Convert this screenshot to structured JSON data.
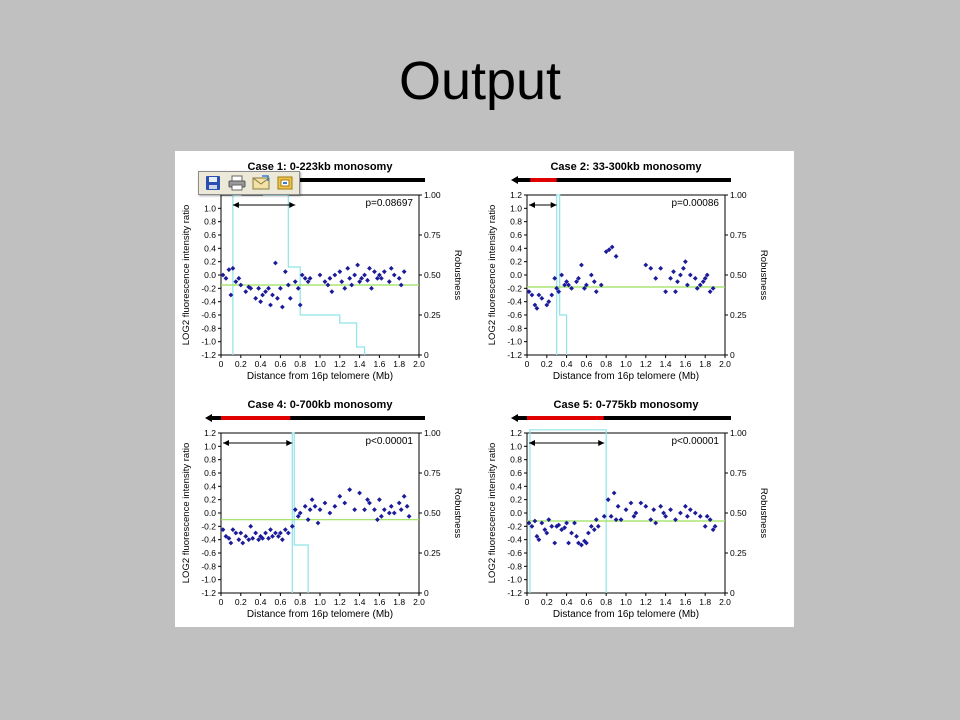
{
  "slide": {
    "title": "Output"
  },
  "toolbar": {
    "buttons": [
      {
        "icon": "save-icon"
      },
      {
        "icon": "print-icon"
      },
      {
        "icon": "email-icon"
      },
      {
        "icon": "export-icon"
      }
    ]
  },
  "chart_data": [
    {
      "type": "scatter",
      "title": "Case 1: 0-223kb monosomy",
      "pvalue": "p=0.08697",
      "xlabel": "Distance from 16p telomere (Mb)",
      "ylabel": "LOG2 fluorescence intensity ratio",
      "y2label": "Robustness",
      "xlim": [
        0,
        2.0
      ],
      "ylim": [
        -1.2,
        1.2
      ],
      "y2lim": [
        0,
        1.0
      ],
      "x_ticks": [
        "0",
        "0.2",
        "0.4",
        "0.6",
        "0.8",
        "1.0",
        "1.2",
        "1.4",
        "1.6",
        "1.8",
        "2.0"
      ],
      "y_ticks": [
        "1.0",
        "0.8",
        "0.6",
        "0.4",
        "0.2",
        "0.0",
        "-0.2",
        "-0.4",
        "-0.6",
        "-0.8",
        "-1.0",
        "-1.2"
      ],
      "y2_ticks": [
        "1.00",
        "0.75",
        "0.50",
        "0.25",
        "0"
      ],
      "monosomy_bar": [
        0,
        0.223
      ],
      "arrow_range": [
        0.1,
        0.75
      ],
      "baseline": -0.15,
      "robustness_step": [
        [
          0.12,
          0
        ],
        [
          0.12,
          1.0
        ],
        [
          0.2,
          1.0
        ],
        [
          0.2,
          1.05
        ],
        [
          0.43,
          1.05
        ],
        [
          0.43,
          1.0
        ],
        [
          0.68,
          1.0
        ],
        [
          0.68,
          0.55
        ],
        [
          0.8,
          0.55
        ],
        [
          0.8,
          0.25
        ],
        [
          1.2,
          0.25
        ],
        [
          1.2,
          0.2
        ],
        [
          1.37,
          0.2
        ],
        [
          1.37,
          0.05
        ],
        [
          1.45,
          0.05
        ],
        [
          1.45,
          0
        ]
      ],
      "points": [
        [
          0.02,
          0.0
        ],
        [
          0.05,
          -0.05
        ],
        [
          0.08,
          0.08
        ],
        [
          0.1,
          -0.3
        ],
        [
          0.12,
          0.1
        ],
        [
          0.15,
          -0.1
        ],
        [
          0.18,
          -0.05
        ],
        [
          0.2,
          -0.15
        ],
        [
          0.25,
          -0.25
        ],
        [
          0.28,
          -0.18
        ],
        [
          0.3,
          -0.2
        ],
        [
          0.35,
          -0.35
        ],
        [
          0.38,
          -0.2
        ],
        [
          0.4,
          -0.4
        ],
        [
          0.42,
          -0.3
        ],
        [
          0.45,
          -0.25
        ],
        [
          0.48,
          -0.2
        ],
        [
          0.5,
          -0.45
        ],
        [
          0.52,
          -0.3
        ],
        [
          0.55,
          0.18
        ],
        [
          0.57,
          -0.35
        ],
        [
          0.6,
          -0.2
        ],
        [
          0.62,
          -0.48
        ],
        [
          0.65,
          0.05
        ],
        [
          0.68,
          -0.15
        ],
        [
          0.7,
          -0.35
        ],
        [
          0.75,
          -0.1
        ],
        [
          0.78,
          -0.2
        ],
        [
          0.8,
          -0.45
        ],
        [
          0.82,
          0.0
        ],
        [
          0.85,
          -0.05
        ],
        [
          0.88,
          -0.1
        ],
        [
          0.9,
          -0.05
        ],
        [
          1.0,
          0.0
        ],
        [
          1.05,
          -0.1
        ],
        [
          1.08,
          -0.15
        ],
        [
          1.1,
          -0.05
        ],
        [
          1.12,
          -0.25
        ],
        [
          1.15,
          0.0
        ],
        [
          1.2,
          0.05
        ],
        [
          1.22,
          -0.1
        ],
        [
          1.25,
          -0.2
        ],
        [
          1.28,
          0.1
        ],
        [
          1.3,
          -0.05
        ],
        [
          1.32,
          -0.15
        ],
        [
          1.35,
          0.0
        ],
        [
          1.38,
          0.15
        ],
        [
          1.4,
          -0.1
        ],
        [
          1.42,
          -0.05
        ],
        [
          1.45,
          0.0
        ],
        [
          1.48,
          -0.08
        ],
        [
          1.5,
          0.1
        ],
        [
          1.52,
          -0.2
        ],
        [
          1.55,
          0.05
        ],
        [
          1.58,
          -0.05
        ],
        [
          1.6,
          0.0
        ],
        [
          1.62,
          -0.05
        ],
        [
          1.65,
          0.05
        ],
        [
          1.7,
          -0.1
        ],
        [
          1.72,
          0.1
        ],
        [
          1.75,
          0.0
        ],
        [
          1.8,
          -0.05
        ],
        [
          1.82,
          -0.15
        ],
        [
          1.85,
          0.05
        ]
      ]
    },
    {
      "type": "scatter",
      "title": "Case 2: 33-300kb monosomy",
      "pvalue": "p=0.00086",
      "xlabel": "Distance from 16p telomere (Mb)",
      "ylabel": "LOG2 fluorescence intensity ratio",
      "y2label": "Robustness",
      "xlim": [
        0,
        2.0
      ],
      "ylim": [
        -1.2,
        1.2
      ],
      "y2lim": [
        0,
        1.0
      ],
      "x_ticks": [
        "0",
        "0.2",
        "0.4",
        "0.6",
        "0.8",
        "1.0",
        "1.2",
        "1.4",
        "1.6",
        "1.8",
        "2.0"
      ],
      "y_ticks": [
        "1.2",
        "1.0",
        "0.8",
        "0.6",
        "0.4",
        "0.2",
        "0.0",
        "-0.2",
        "-0.4",
        "-0.6",
        "-0.8",
        "-1.0",
        "-1.2"
      ],
      "y2_ticks": [
        "1.00",
        "0.75",
        "0.50",
        "0.25",
        "0"
      ],
      "monosomy_bar": [
        0.033,
        0.3
      ],
      "arrow_range": [
        0.0,
        0.3
      ],
      "baseline": -0.18,
      "robustness_step": [
        [
          0.3,
          0
        ],
        [
          0.3,
          1.0
        ],
        [
          0.33,
          1.0
        ],
        [
          0.33,
          0.25
        ],
        [
          0.4,
          0.25
        ],
        [
          0.4,
          0
        ]
      ],
      "points": [
        [
          0.02,
          -0.25
        ],
        [
          0.05,
          -0.3
        ],
        [
          0.08,
          -0.45
        ],
        [
          0.1,
          -0.5
        ],
        [
          0.12,
          -0.3
        ],
        [
          0.15,
          -0.35
        ],
        [
          0.2,
          -0.45
        ],
        [
          0.22,
          -0.4
        ],
        [
          0.25,
          -0.3
        ],
        [
          0.28,
          -0.05
        ],
        [
          0.3,
          -0.2
        ],
        [
          0.32,
          -0.25
        ],
        [
          0.35,
          0.0
        ],
        [
          0.38,
          -0.15
        ],
        [
          0.4,
          -0.1
        ],
        [
          0.42,
          -0.15
        ],
        [
          0.45,
          -0.2
        ],
        [
          0.5,
          -0.1
        ],
        [
          0.52,
          -0.05
        ],
        [
          0.55,
          0.15
        ],
        [
          0.58,
          -0.2
        ],
        [
          0.6,
          -0.15
        ],
        [
          0.65,
          0.0
        ],
        [
          0.68,
          -0.1
        ],
        [
          0.7,
          -0.25
        ],
        [
          0.75,
          -0.15
        ],
        [
          0.8,
          0.35
        ],
        [
          0.83,
          0.38
        ],
        [
          0.86,
          0.42
        ],
        [
          0.9,
          0.28
        ],
        [
          1.2,
          0.15
        ],
        [
          1.25,
          0.1
        ],
        [
          1.3,
          -0.05
        ],
        [
          1.35,
          0.1
        ],
        [
          1.4,
          -0.25
        ],
        [
          1.45,
          -0.05
        ],
        [
          1.48,
          0.05
        ],
        [
          1.5,
          -0.25
        ],
        [
          1.52,
          -0.1
        ],
        [
          1.55,
          0.0
        ],
        [
          1.58,
          0.1
        ],
        [
          1.6,
          0.2
        ],
        [
          1.62,
          -0.15
        ],
        [
          1.65,
          0.0
        ],
        [
          1.7,
          -0.05
        ],
        [
          1.72,
          -0.2
        ],
        [
          1.75,
          -0.15
        ],
        [
          1.78,
          -0.1
        ],
        [
          1.8,
          -0.05
        ],
        [
          1.82,
          0.0
        ],
        [
          1.85,
          -0.25
        ],
        [
          1.88,
          -0.2
        ]
      ]
    },
    {
      "type": "scatter",
      "title": "Case 4: 0-700kb monosomy",
      "pvalue": "p<0.00001",
      "xlabel": "Distance from 16p telomere (Mb)",
      "ylabel": "LOG2 fluorescence intensity ratio",
      "y2label": "Robustness",
      "xlim": [
        0,
        2.0
      ],
      "ylim": [
        -1.2,
        1.2
      ],
      "y2lim": [
        0,
        1.0
      ],
      "x_ticks": [
        "0",
        "0.2",
        "0.4",
        "0.6",
        "0.8",
        "1.0",
        "1.2",
        "1.4",
        "1.6",
        "1.8",
        "2.0"
      ],
      "y_ticks": [
        "1.2",
        "1.0",
        "0.8",
        "0.6",
        "0.4",
        "0.2",
        "0.0",
        "-0.2",
        "-0.4",
        "-0.6",
        "-0.8",
        "-1.0",
        "-1.2"
      ],
      "y2_ticks": [
        "1.00",
        "0.75",
        "0.50",
        "0.25",
        "0"
      ],
      "monosomy_bar": [
        0,
        0.7
      ],
      "arrow_range": [
        0.0,
        0.72
      ],
      "baseline": -0.1,
      "robustness_step": [
        [
          0.72,
          0
        ],
        [
          0.72,
          1.0
        ],
        [
          0.74,
          1.0
        ],
        [
          0.74,
          0.3
        ],
        [
          0.88,
          0.3
        ],
        [
          0.88,
          0
        ]
      ],
      "points": [
        [
          0.02,
          -0.25
        ],
        [
          0.05,
          -0.35
        ],
        [
          0.08,
          -0.38
        ],
        [
          0.1,
          -0.45
        ],
        [
          0.12,
          -0.25
        ],
        [
          0.15,
          -0.3
        ],
        [
          0.18,
          -0.4
        ],
        [
          0.2,
          -0.3
        ],
        [
          0.22,
          -0.45
        ],
        [
          0.25,
          -0.35
        ],
        [
          0.28,
          -0.4
        ],
        [
          0.3,
          -0.2
        ],
        [
          0.32,
          -0.38
        ],
        [
          0.35,
          -0.3
        ],
        [
          0.38,
          -0.4
        ],
        [
          0.4,
          -0.35
        ],
        [
          0.42,
          -0.38
        ],
        [
          0.45,
          -0.3
        ],
        [
          0.48,
          -0.38
        ],
        [
          0.5,
          -0.25
        ],
        [
          0.52,
          -0.35
        ],
        [
          0.55,
          -0.3
        ],
        [
          0.58,
          -0.35
        ],
        [
          0.6,
          -0.3
        ],
        [
          0.62,
          -0.4
        ],
        [
          0.65,
          -0.25
        ],
        [
          0.68,
          -0.3
        ],
        [
          0.72,
          -0.2
        ],
        [
          0.75,
          0.05
        ],
        [
          0.78,
          -0.05
        ],
        [
          0.8,
          0.0
        ],
        [
          0.85,
          0.1
        ],
        [
          0.88,
          -0.1
        ],
        [
          0.9,
          0.05
        ],
        [
          0.92,
          0.2
        ],
        [
          0.95,
          0.1
        ],
        [
          0.98,
          -0.15
        ],
        [
          1.0,
          0.05
        ],
        [
          1.05,
          0.15
        ],
        [
          1.1,
          0.0
        ],
        [
          1.15,
          0.1
        ],
        [
          1.2,
          0.25
        ],
        [
          1.25,
          0.15
        ],
        [
          1.3,
          0.35
        ],
        [
          1.35,
          0.05
        ],
        [
          1.4,
          0.3
        ],
        [
          1.45,
          0.05
        ],
        [
          1.48,
          0.2
        ],
        [
          1.5,
          0.15
        ],
        [
          1.55,
          0.05
        ],
        [
          1.58,
          -0.1
        ],
        [
          1.6,
          0.2
        ],
        [
          1.62,
          -0.05
        ],
        [
          1.65,
          0.05
        ],
        [
          1.7,
          0.0
        ],
        [
          1.72,
          0.1
        ],
        [
          1.75,
          0.0
        ],
        [
          1.8,
          0.15
        ],
        [
          1.82,
          0.05
        ],
        [
          1.85,
          0.25
        ],
        [
          1.88,
          0.1
        ],
        [
          1.9,
          -0.05
        ]
      ]
    },
    {
      "type": "scatter",
      "title": "Case 5: 0-775kb monosomy",
      "pvalue": "p<0.00001",
      "xlabel": "Distance from 16p telomere (Mb)",
      "ylabel": "LOG2 fluorescence intensity ratio",
      "y2label": "Robustness",
      "xlim": [
        0,
        2.0
      ],
      "ylim": [
        -1.2,
        1.2
      ],
      "y2lim": [
        0,
        1.0
      ],
      "x_ticks": [
        "0",
        "0.2",
        "0.4",
        "0.6",
        "0.8",
        "1.0",
        "1.2",
        "1.4",
        "1.6",
        "1.8",
        "2.0"
      ],
      "y_ticks": [
        "1.2",
        "1.0",
        "0.8",
        "0.6",
        "0.4",
        "0.2",
        "0.0",
        "-0.2",
        "-0.4",
        "-0.6",
        "-0.8",
        "-1.0",
        "-1.2"
      ],
      "y2_ticks": [
        "1.00",
        "0.75",
        "0.50",
        "0.25",
        "0"
      ],
      "monosomy_bar": [
        0,
        0.775
      ],
      "arrow_range": [
        0.0,
        0.78
      ],
      "baseline": -0.12,
      "robustness_step": [
        [
          0.03,
          0
        ],
        [
          0.03,
          1.02
        ],
        [
          0.8,
          1.02
        ],
        [
          0.8,
          0
        ]
      ],
      "points": [
        [
          0.02,
          -0.15
        ],
        [
          0.05,
          -0.2
        ],
        [
          0.08,
          -0.12
        ],
        [
          0.1,
          -0.35
        ],
        [
          0.12,
          -0.4
        ],
        [
          0.15,
          -0.15
        ],
        [
          0.18,
          -0.25
        ],
        [
          0.2,
          -0.3
        ],
        [
          0.22,
          -0.1
        ],
        [
          0.25,
          -0.2
        ],
        [
          0.28,
          -0.45
        ],
        [
          0.3,
          -0.2
        ],
        [
          0.32,
          -0.18
        ],
        [
          0.35,
          -0.25
        ],
        [
          0.38,
          -0.22
        ],
        [
          0.4,
          -0.15
        ],
        [
          0.42,
          -0.45
        ],
        [
          0.45,
          -0.3
        ],
        [
          0.48,
          -0.15
        ],
        [
          0.5,
          -0.35
        ],
        [
          0.52,
          -0.45
        ],
        [
          0.55,
          -0.48
        ],
        [
          0.58,
          -0.42
        ],
        [
          0.6,
          -0.45
        ],
        [
          0.62,
          -0.3
        ],
        [
          0.65,
          -0.2
        ],
        [
          0.68,
          -0.25
        ],
        [
          0.7,
          -0.1
        ],
        [
          0.72,
          -0.2
        ],
        [
          0.78,
          -0.05
        ],
        [
          0.82,
          0.2
        ],
        [
          0.85,
          -0.05
        ],
        [
          0.88,
          0.3
        ],
        [
          0.9,
          -0.1
        ],
        [
          0.92,
          0.1
        ],
        [
          0.95,
          -0.1
        ],
        [
          1.0,
          0.05
        ],
        [
          1.05,
          0.15
        ],
        [
          1.08,
          -0.05
        ],
        [
          1.1,
          0.0
        ],
        [
          1.15,
          0.15
        ],
        [
          1.2,
          0.1
        ],
        [
          1.25,
          -0.1
        ],
        [
          1.28,
          0.05
        ],
        [
          1.3,
          -0.15
        ],
        [
          1.35,
          0.1
        ],
        [
          1.38,
          0.0
        ],
        [
          1.4,
          -0.05
        ],
        [
          1.45,
          0.05
        ],
        [
          1.5,
          -0.1
        ],
        [
          1.55,
          0.0
        ],
        [
          1.6,
          0.1
        ],
        [
          1.62,
          -0.05
        ],
        [
          1.65,
          0.05
        ],
        [
          1.7,
          0.0
        ],
        [
          1.75,
          -0.05
        ],
        [
          1.8,
          -0.2
        ],
        [
          1.82,
          -0.05
        ],
        [
          1.85,
          -0.1
        ],
        [
          1.88,
          -0.25
        ],
        [
          1.9,
          -0.2
        ]
      ]
    }
  ]
}
